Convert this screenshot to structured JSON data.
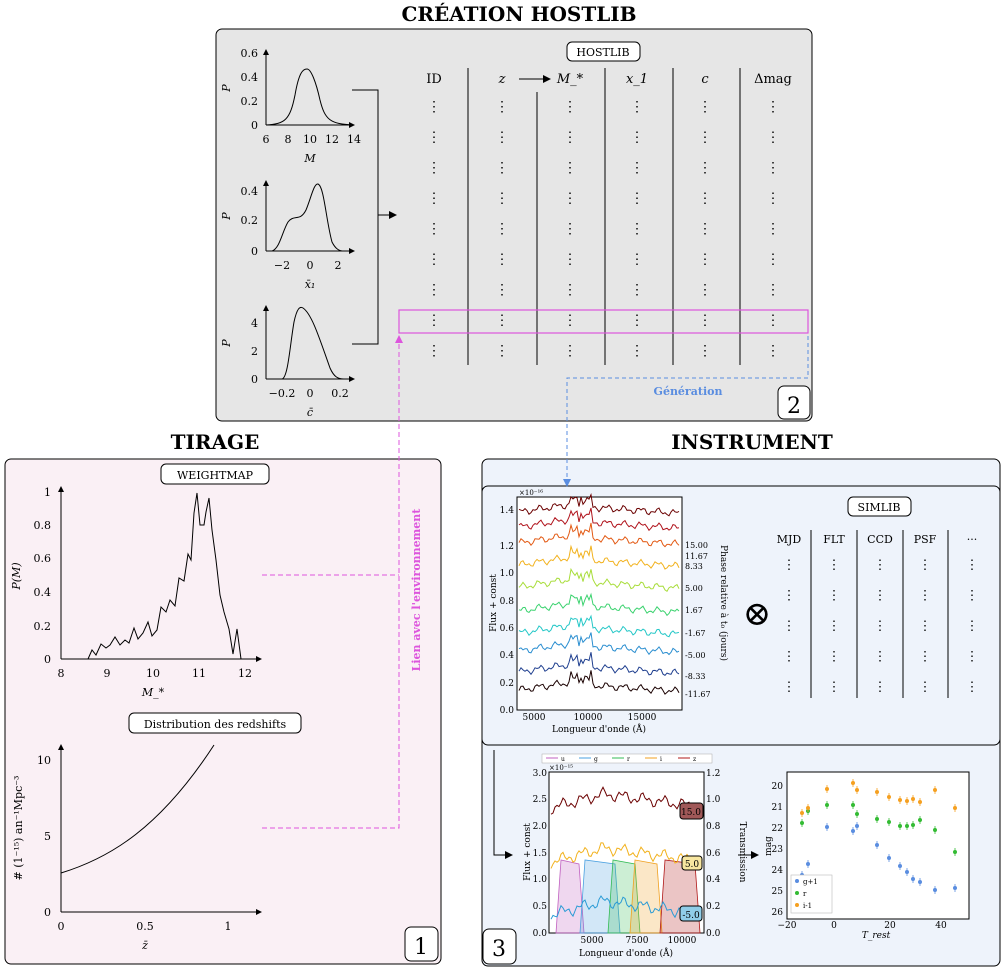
{
  "titles": {
    "hostlib": "CRÉATION HOSTLIB",
    "tirage": "TIRAGE",
    "instrument": "INSTRUMENT"
  },
  "hostlib": {
    "label": "HOSTLIB",
    "columns": [
      "ID",
      "z",
      "M_*",
      "x_1",
      "c",
      "Δmag"
    ],
    "rows": 9,
    "cell": "⋮",
    "panel_number": "2",
    "generation_label": "Génération",
    "plots": [
      {
        "xlabel": "M",
        "ylabel": "P",
        "xticks": [
          "6",
          "8",
          "10",
          "12",
          "14"
        ],
        "yticks": [
          "0",
          "0.2",
          "0.4",
          "0.6"
        ]
      },
      {
        "xlabel": "x̄₁",
        "ylabel": "P",
        "xticks": [
          "−2",
          "0",
          "2"
        ],
        "yticks": [
          "0",
          "0.2",
          "0.4"
        ]
      },
      {
        "xlabel": "c̄",
        "ylabel": "P",
        "xticks": [
          "−0.2",
          "0",
          "0.2"
        ],
        "yticks": [
          "0",
          "2",
          "4"
        ]
      }
    ]
  },
  "tirage": {
    "weightmap_label": "WEIGHTMAP",
    "redshift_label": "Distribution des redshifts",
    "panel_number": "1",
    "link_label": "Lien avec l'environnement",
    "weightmap_plot": {
      "xlabel": "M_*",
      "ylabel": "P(M)",
      "xticks": [
        "8",
        "9",
        "10",
        "11",
        "12"
      ],
      "yticks": [
        "0",
        "0.2",
        "0.4",
        "0.6",
        "0.8",
        "1"
      ]
    },
    "redshift_plot": {
      "xlabel": "z̄",
      "ylabel": "# (1⁻¹⁵) an⁻¹Mpc⁻³",
      "xticks": [
        "0",
        "0.5",
        "1"
      ],
      "yticks": [
        "0",
        "5",
        "10"
      ]
    }
  },
  "instrument": {
    "panel_number": "3",
    "simlib_label": "SIMLIB",
    "simlib_columns": [
      "MJD",
      "FLT",
      "CCD",
      "PSF",
      "···"
    ],
    "otimes": "⊗",
    "spectra": {
      "xlabel": "Longueur d'onde (Å)",
      "ylabel": "Flux + const",
      "ylabel_right": "Phase relative à t₀ (jours)",
      "xticks": [
        "5000",
        "10000",
        "15000"
      ],
      "yticks": [
        "0.0",
        "0.2",
        "0.4",
        "0.6",
        "0.8",
        "1.0",
        "1.2",
        "1.4"
      ],
      "phases": [
        "15.00",
        "11.67",
        "8.33",
        "5.00",
        "1.67",
        "-1.67",
        "-5.00",
        "-8.33",
        "-11.67"
      ],
      "scale_label": "×10⁻¹⁶"
    },
    "filters_plot": {
      "xlabel": "Longueur d'onde (Å)",
      "ylabel": "Flux + const",
      "ylabel_right": "Transmission",
      "xticks": [
        "5000",
        "7500",
        "10000"
      ],
      "yticks": [
        "0.0",
        "0.5",
        "1.0",
        "1.5",
        "2.0",
        "2.5",
        "3.0"
      ],
      "yticks_right": [
        "0.0",
        "0.2",
        "0.4",
        "0.6",
        "0.8",
        "1.0",
        "1.2"
      ],
      "legend": [
        "u",
        "g",
        "r",
        "i",
        "z"
      ],
      "phase_tags": [
        "15.0",
        "5.0",
        "-5.0"
      ],
      "scale_label": "×10⁻¹⁵"
    },
    "lightcurve": {
      "xlabel": "T_rest",
      "ylabel": "mag",
      "xticks": [
        "−20",
        "0",
        "20",
        "40"
      ],
      "yticks": [
        "20",
        "21",
        "22",
        "23",
        "24",
        "25",
        "26"
      ],
      "legend": [
        "g+1",
        "r",
        "i-1"
      ]
    }
  },
  "colors": {
    "panel_gray": "#e6e6e6",
    "panel_pink": "#faf0f5",
    "panel_blue": "#eef3fb",
    "link_magenta": "#dd55dd",
    "link_blue": "#5a8de0"
  }
}
